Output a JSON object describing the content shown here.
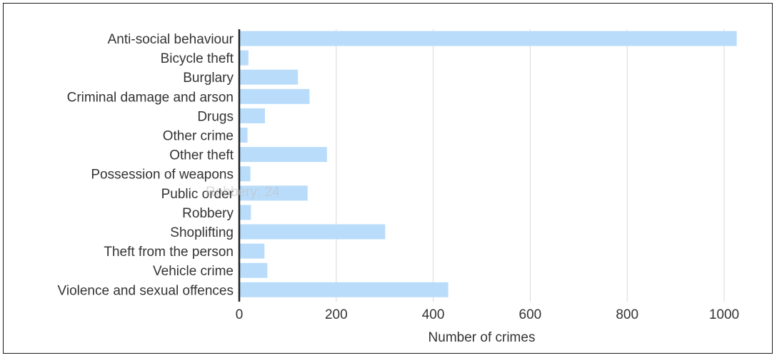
{
  "chart_data": {
    "type": "bar",
    "orientation": "horizontal",
    "categories": [
      "Anti-social behaviour",
      "Bicycle theft",
      "Burglary",
      "Criminal damage and arson",
      "Drugs",
      "Other crime",
      "Other theft",
      "Possession of weapons",
      "Public order",
      "Robbery",
      "Shoplifting",
      "Theft from the person",
      "Vehicle crime",
      "Violence and sexual offences"
    ],
    "values": [
      1026,
      19,
      121,
      145,
      53,
      17,
      181,
      23,
      141,
      24,
      301,
      52,
      58,
      431
    ],
    "xlabel": "Number of crimes",
    "ylabel": "",
    "xlim": [
      0,
      1050
    ],
    "xticks": [
      0,
      200,
      400,
      600,
      800,
      1000
    ],
    "grid": true,
    "bar_color": "#b9dcfb",
    "faint_tooltip_text": "Robbery: 24"
  }
}
